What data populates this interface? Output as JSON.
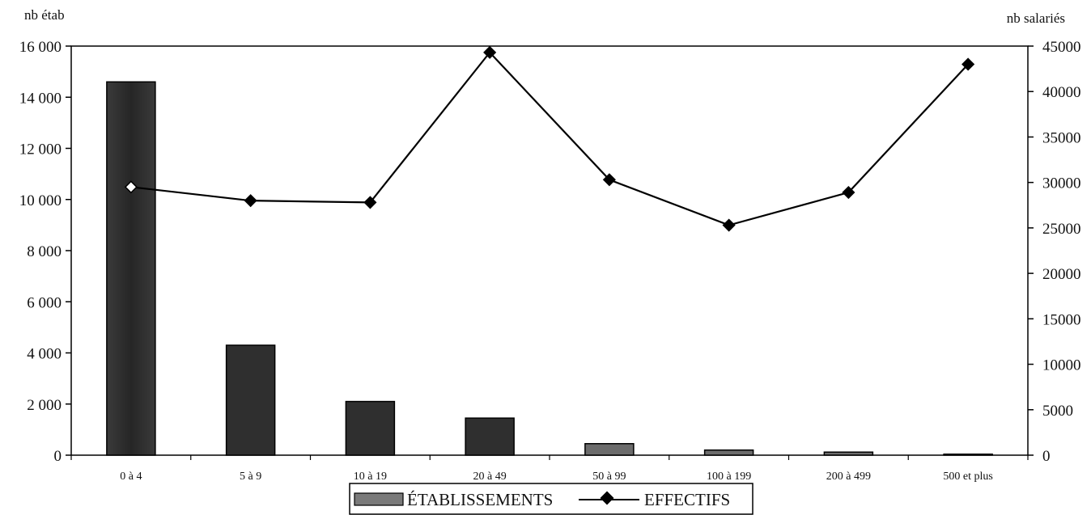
{
  "chart_data": {
    "type": "bar",
    "y_left_label": "nb étab",
    "y_right_label": "nb salariés",
    "categories": [
      "0 à 4",
      "5 à 9",
      "10 à 19",
      "20 à 49",
      "50 à 99",
      "100 à 199",
      "200 à 499",
      "500 et plus"
    ],
    "ylim_left": [
      0,
      16000
    ],
    "ylim_right": [
      0,
      45000
    ],
    "yticks_left": [
      "0",
      "2 000",
      "4 000",
      "6 000",
      "8 000",
      "10 000",
      "12 000",
      "14 000",
      "16 000"
    ],
    "yticks_right": [
      "0",
      "5000",
      "10000",
      "15000",
      "20000",
      "25000",
      "30000",
      "35000",
      "40000",
      "45000"
    ],
    "series": [
      {
        "name": "ÉTABLISSEMENTS",
        "type": "bar",
        "axis": "left",
        "values": [
          14600,
          4300,
          2100,
          1450,
          450,
          200,
          120,
          40
        ]
      },
      {
        "name": "EFFECTIFS",
        "type": "line",
        "axis": "right",
        "values": [
          29500,
          28000,
          27800,
          44300,
          30300,
          25300,
          28900,
          43000
        ]
      }
    ],
    "legend_position": "bottom-center",
    "grid": false
  }
}
